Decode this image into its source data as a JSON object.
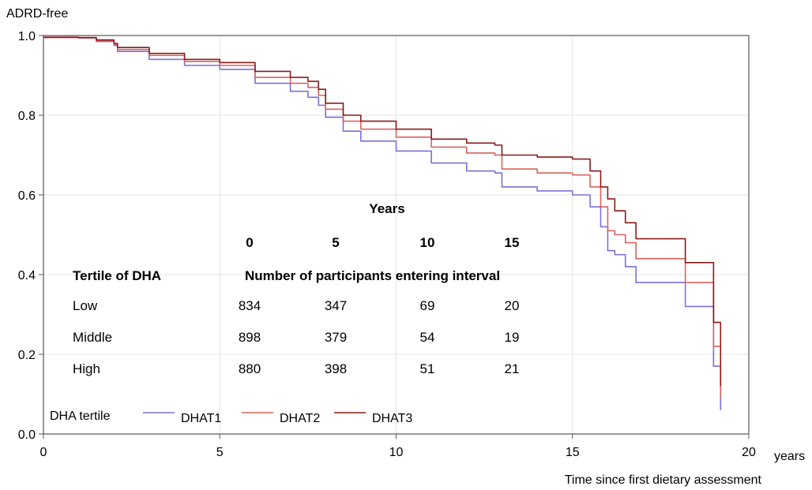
{
  "chart_data": {
    "type": "line",
    "ylabel": "ADRD-free",
    "xlabel": "Time since first dietary assessment",
    "x_unit": "years",
    "xlim": [
      0,
      20
    ],
    "ylim": [
      0.0,
      1.0
    ],
    "x_ticks": [
      "0",
      "5",
      "10",
      "15",
      "20"
    ],
    "y_ticks": [
      "0.0",
      "0.2",
      "0.4",
      "0.6",
      "0.8",
      "1.0"
    ],
    "grid": true,
    "legend": {
      "title": "DHA tertile",
      "position": "bottom-left inside",
      "entries": [
        "DHAT1",
        "DHAT2",
        "DHAT3"
      ]
    },
    "colors": {
      "DHAT1": "#7b6fd9",
      "DHAT2": "#d9625e",
      "DHAT3": "#8b1a1a"
    },
    "series": [
      {
        "name": "DHAT1",
        "x": [
          0,
          1,
          1.5,
          2,
          2.1,
          3,
          4,
          5,
          6,
          7,
          7.5,
          7.8,
          8,
          8.5,
          9,
          10,
          11,
          12,
          12.8,
          13,
          14,
          15,
          15.5,
          15.8,
          16,
          16.2,
          16.5,
          16.8,
          18.2,
          19,
          19.2
        ],
        "y": [
          0.995,
          0.994,
          0.985,
          0.975,
          0.96,
          0.94,
          0.925,
          0.915,
          0.88,
          0.86,
          0.845,
          0.825,
          0.795,
          0.76,
          0.735,
          0.71,
          0.68,
          0.66,
          0.655,
          0.62,
          0.61,
          0.6,
          0.57,
          0.52,
          0.46,
          0.45,
          0.42,
          0.38,
          0.32,
          0.17,
          0.06
        ]
      },
      {
        "name": "DHAT2",
        "x": [
          0,
          1,
          1.5,
          2,
          2.1,
          3,
          4,
          5,
          6,
          7,
          7.5,
          7.8,
          8,
          8.5,
          9,
          10,
          11,
          12,
          12.8,
          13,
          14,
          15,
          15.5,
          15.8,
          16,
          16.2,
          16.5,
          16.8,
          18.2,
          19,
          19.2
        ],
        "y": [
          0.995,
          0.994,
          0.987,
          0.978,
          0.965,
          0.95,
          0.935,
          0.925,
          0.895,
          0.88,
          0.87,
          0.85,
          0.815,
          0.785,
          0.765,
          0.745,
          0.72,
          0.705,
          0.7,
          0.665,
          0.655,
          0.65,
          0.62,
          0.57,
          0.51,
          0.5,
          0.48,
          0.44,
          0.38,
          0.22,
          0.09
        ]
      },
      {
        "name": "DHAT3",
        "x": [
          0,
          1,
          1.5,
          2,
          2.1,
          3,
          4,
          5,
          6,
          7,
          7.5,
          7.8,
          8,
          8.5,
          9,
          10,
          11,
          12,
          12.8,
          13,
          14,
          15,
          15.5,
          15.8,
          16,
          16.2,
          16.5,
          16.8,
          18.2,
          19,
          19.2
        ],
        "y": [
          0.996,
          0.995,
          0.989,
          0.98,
          0.97,
          0.955,
          0.94,
          0.932,
          0.91,
          0.895,
          0.885,
          0.865,
          0.83,
          0.8,
          0.785,
          0.765,
          0.74,
          0.73,
          0.725,
          0.7,
          0.695,
          0.69,
          0.66,
          0.62,
          0.59,
          0.56,
          0.53,
          0.49,
          0.43,
          0.28,
          0.12
        ]
      }
    ],
    "risk_table": {
      "title": "Years",
      "time_points": [
        "0",
        "5",
        "10",
        "15"
      ],
      "row_header": "Tertile of DHA",
      "col_header": "Number of participants entering interval",
      "rows": [
        {
          "label": "Low",
          "values": [
            "834",
            "347",
            "69",
            "20"
          ]
        },
        {
          "label": "Middle",
          "values": [
            "898",
            "379",
            "54",
            "19"
          ]
        },
        {
          "label": "High",
          "values": [
            "880",
            "398",
            "51",
            "21"
          ]
        }
      ]
    }
  }
}
